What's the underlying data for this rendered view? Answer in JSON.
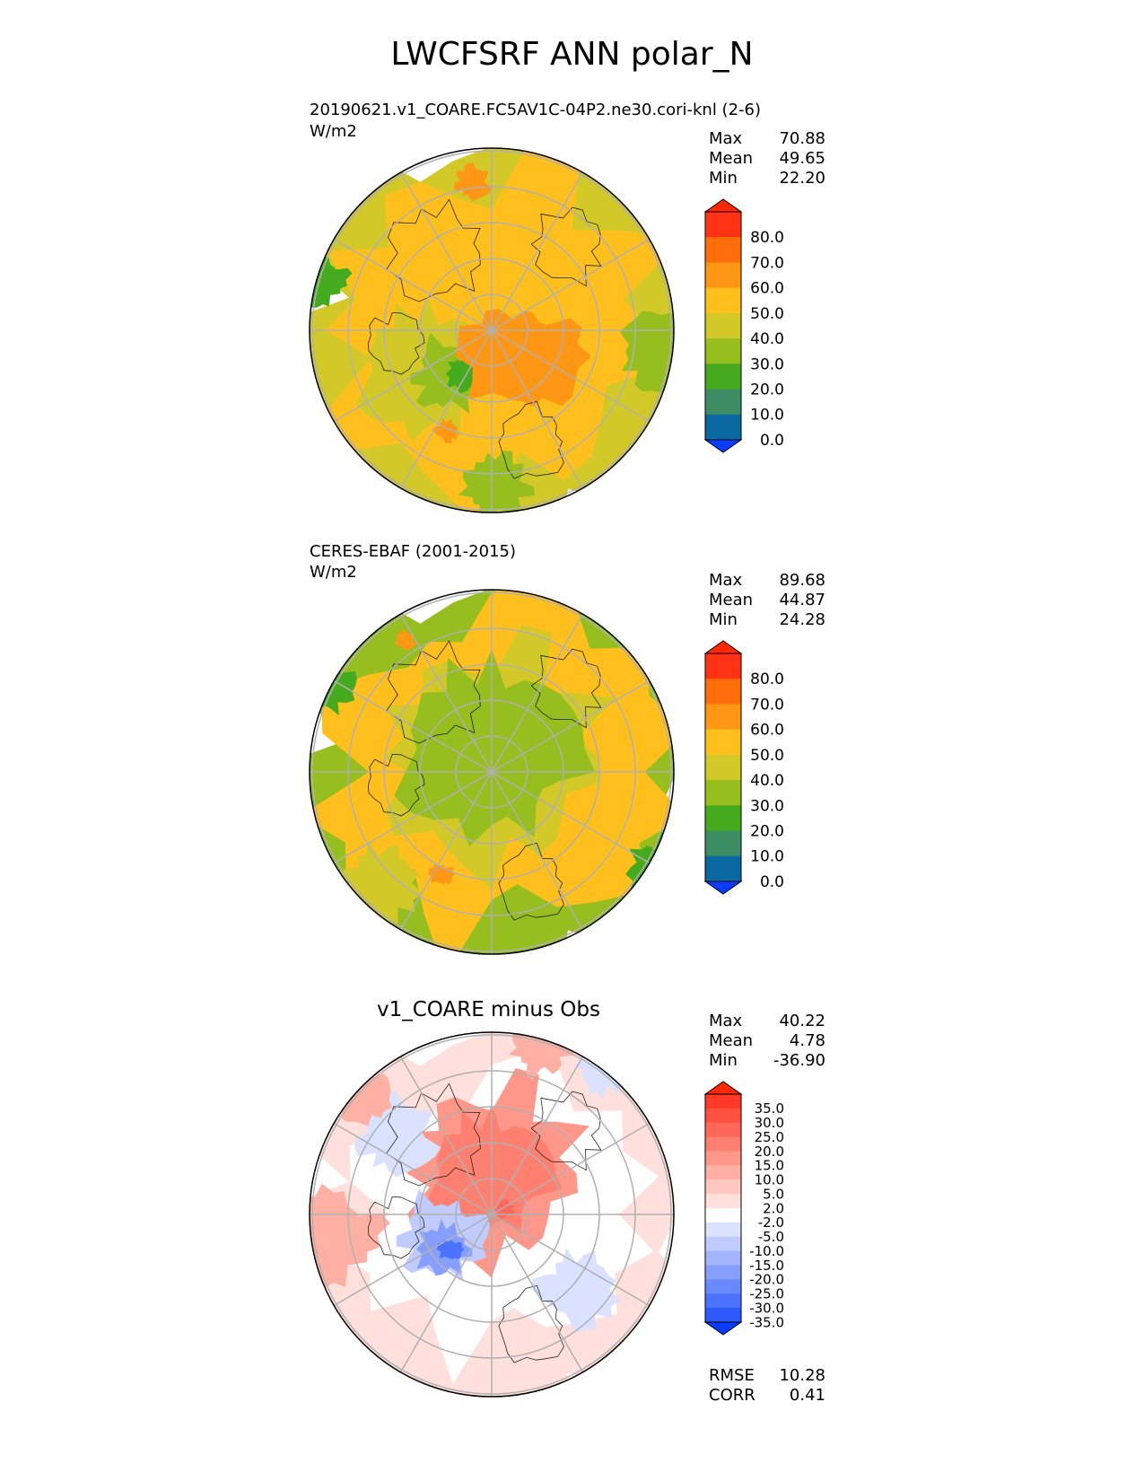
{
  "title": "LWCFSRF ANN polar_N",
  "colors": {
    "cbar_abs": [
      "#0a3cff",
      "#0a69a0",
      "#3c8c64",
      "#46aa1e",
      "#96be1e",
      "#d2c828",
      "#ffc01e",
      "#ff9614",
      "#ff6e0a",
      "#ff3214",
      "#ff2800"
    ],
    "cbar_diff": [
      "#0a3cff",
      "#2d5aff",
      "#4b73ff",
      "#6989ff",
      "#869fff",
      "#a4b5ff",
      "#c0cbff",
      "#dbe2ff",
      "#ffffff",
      "#ffe0dc",
      "#ffc8c0",
      "#ffb0a5",
      "#ff988a",
      "#ff8070",
      "#ff6858",
      "#ff5040",
      "#ff3828",
      "#ff2800"
    ]
  },
  "panels": {
    "test": {
      "case_name": "20190621.v1_COARE.FC5AV1C-04P2.ne30.cori-knl (2-6)",
      "units": "W/m2",
      "stats": [
        [
          "Max",
          "70.88"
        ],
        [
          "Mean",
          "49.65"
        ],
        [
          "Min",
          "22.20"
        ]
      ]
    },
    "ref": {
      "case_name": "CERES-EBAF (2001-2015)",
      "units": "W/m2",
      "stats": [
        [
          "Max",
          "89.68"
        ],
        [
          "Mean",
          "44.87"
        ],
        [
          "Min",
          "24.28"
        ]
      ]
    },
    "diff": {
      "title": "v1_COARE minus Obs",
      "stats": [
        [
          "Max",
          "40.22"
        ],
        [
          "Mean",
          "4.78"
        ],
        [
          "Min",
          "-36.90"
        ]
      ],
      "metrics": [
        [
          "RMSE",
          "10.28"
        ],
        [
          "CORR",
          "0.41"
        ]
      ]
    }
  },
  "chart_data": [
    {
      "type": "heatmap",
      "projection": "north polar stereographic",
      "case_name": "20190621.v1_COARE.FC5AV1C-04P2.ne30.cori-knl (2-6)",
      "units": "W/m2",
      "max": 70.88,
      "mean": 49.65,
      "min": 22.2,
      "colorbar_levels": [
        0,
        10,
        20,
        30,
        40,
        50,
        60,
        70,
        80
      ],
      "colorbar_labels": [
        "80.0",
        "70.0",
        "60.0",
        "50.0",
        "40.0",
        "30.0",
        "20.0",
        "10.0",
        "0.0"
      ]
    },
    {
      "type": "heatmap",
      "projection": "north polar stereographic",
      "case_name": "CERES-EBAF (2001-2015)",
      "units": "W/m2",
      "max": 89.68,
      "mean": 44.87,
      "min": 24.28,
      "colorbar_levels": [
        0,
        10,
        20,
        30,
        40,
        50,
        60,
        70,
        80
      ],
      "colorbar_labels": [
        "80.0",
        "70.0",
        "60.0",
        "50.0",
        "40.0",
        "30.0",
        "20.0",
        "10.0",
        "0.0"
      ]
    },
    {
      "type": "heatmap",
      "projection": "north polar stereographic",
      "title": "v1_COARE minus Obs",
      "max": 40.22,
      "mean": 4.78,
      "min": -36.9,
      "rmse": 10.28,
      "corr": 0.41,
      "colorbar_levels": [
        -35,
        -30,
        -25,
        -20,
        -15,
        -10,
        -5,
        -2,
        2,
        5,
        10,
        15,
        20,
        25,
        30,
        35
      ],
      "colorbar_labels": [
        "35.0",
        "30.0",
        "25.0",
        "20.0",
        "15.0",
        "10.0",
        "5.0",
        "2.0",
        "-2.0",
        "-5.0",
        "-10.0",
        "-15.0",
        "-20.0",
        "-25.0",
        "-30.0",
        "-35.0"
      ]
    }
  ]
}
